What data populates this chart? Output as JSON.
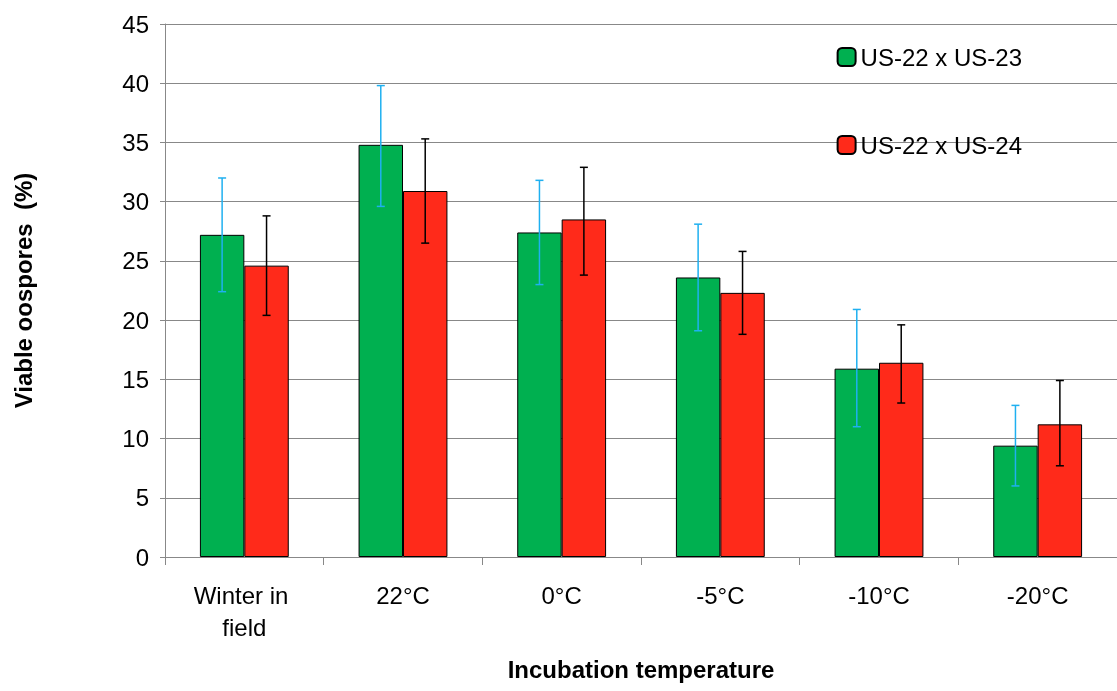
{
  "chart_data": {
    "type": "bar",
    "xlabel": "Incubation temperature",
    "ylabel": "Viable oospores  (%)",
    "categories": [
      "Winter in field",
      "22°C",
      "0°C",
      "-5°C",
      "-10°C",
      "-20°C"
    ],
    "series": [
      {
        "name": "US-22 x US-23",
        "color": "#00b050",
        "values": [
          27.2,
          34.8,
          27.4,
          23.6,
          15.9,
          9.4
        ],
        "errors": [
          [
            22.4,
            32.0
          ],
          [
            29.6,
            39.8
          ],
          [
            23.0,
            31.8
          ],
          [
            19.1,
            28.1
          ],
          [
            11.0,
            20.9
          ],
          [
            6.0,
            12.8
          ]
        ]
      },
      {
        "name": "US-22 x US-24",
        "color": "#ff2a1a",
        "values": [
          24.6,
          30.9,
          28.5,
          22.3,
          16.4,
          11.2
        ],
        "errors": [
          [
            20.4,
            28.8
          ],
          [
            26.5,
            35.3
          ],
          [
            23.8,
            32.9
          ],
          [
            18.8,
            25.8
          ],
          [
            13.0,
            19.6
          ],
          [
            7.7,
            14.9
          ]
        ]
      }
    ],
    "ylim": [
      0,
      45
    ],
    "yticks": [
      0,
      5,
      10,
      15,
      20,
      25,
      30,
      35,
      40,
      45
    ],
    "grid": "y",
    "legend": "top right"
  }
}
